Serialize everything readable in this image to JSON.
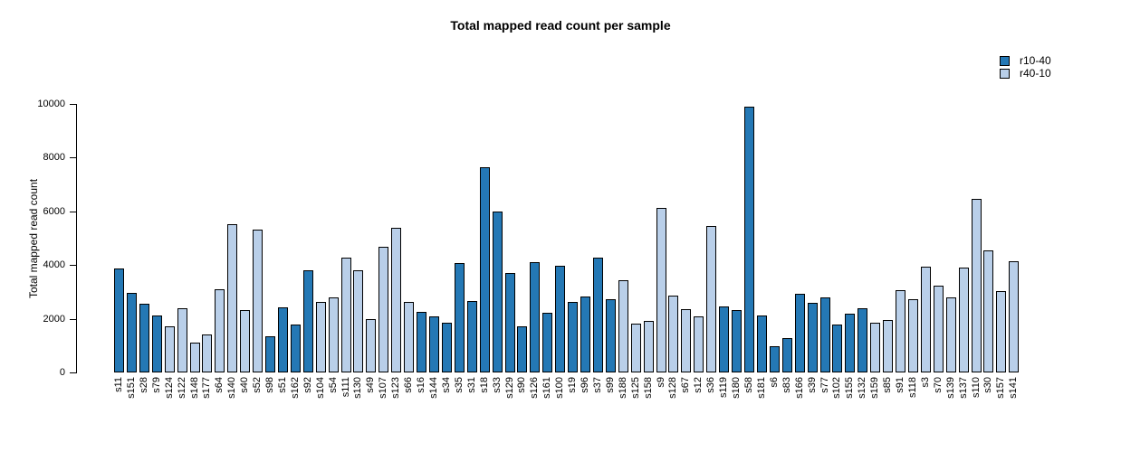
{
  "chart_data": {
    "type": "bar",
    "title": "Total mapped read count per sample",
    "xlabel": "",
    "ylabel": "Total mapped read count",
    "ylim": [
      0,
      10000
    ],
    "yticks": [
      0,
      2000,
      4000,
      6000,
      8000,
      10000
    ],
    "grid": false,
    "legend_position": "top-right",
    "bar_border_color": "#000000",
    "series": [
      {
        "name": "r10-40",
        "color": "#2478b5"
      },
      {
        "name": "r40-10",
        "color": "#b9cfe9"
      }
    ],
    "categories": [
      "s11",
      "s151",
      "s28",
      "s79",
      "s124",
      "s122",
      "s148",
      "s177",
      "s64",
      "s140",
      "s40",
      "s52",
      "s98",
      "s51",
      "s162",
      "s92",
      "s104",
      "s54",
      "s111",
      "s130",
      "s49",
      "s107",
      "s123",
      "s66",
      "s16",
      "s144",
      "s34",
      "s35",
      "s31",
      "s18",
      "s33",
      "s129",
      "s90",
      "s126",
      "s161",
      "s100",
      "s19",
      "s96",
      "s37",
      "s99",
      "s188",
      "s125",
      "s158",
      "s9",
      "s128",
      "s67",
      "s12",
      "s36",
      "s119",
      "s180",
      "s58",
      "s181",
      "s6",
      "s83",
      "s166",
      "s39",
      "s77",
      "s102",
      "s155",
      "s132",
      "s159",
      "s85",
      "s91",
      "s118",
      "s3",
      "s70",
      "s139",
      "s137",
      "s110",
      "s30",
      "s157",
      "s141"
    ],
    "values": [
      3860,
      2970,
      2550,
      2110,
      1720,
      2390,
      1100,
      1430,
      3110,
      5530,
      2330,
      5320,
      1350,
      2440,
      1770,
      3810,
      2630,
      2810,
      4280,
      3810,
      2000,
      4670,
      5400,
      2630,
      2250,
      2100,
      1850,
      4080,
      2660,
      7650,
      6010,
      3700,
      1720,
      4110,
      2220,
      3970,
      2630,
      2830,
      4260,
      2720,
      3440,
      1830,
      1910,
      6140,
      2850,
      2360,
      2080,
      5470,
      2470,
      2330,
      9910,
      2130,
      990,
      1270,
      2940,
      2580,
      2780,
      1770,
      2200,
      2400,
      1850,
      1940,
      3050,
      2720,
      3950,
      3240,
      2800,
      3910,
      6460,
      4560,
      3020,
      4140
    ],
    "bar_series": [
      "r10-40",
      "r10-40",
      "r10-40",
      "r10-40",
      "r40-10",
      "r40-10",
      "r40-10",
      "r40-10",
      "r40-10",
      "r40-10",
      "r40-10",
      "r40-10",
      "r10-40",
      "r10-40",
      "r10-40",
      "r10-40",
      "r40-10",
      "r40-10",
      "r40-10",
      "r40-10",
      "r40-10",
      "r40-10",
      "r40-10",
      "r40-10",
      "r10-40",
      "r10-40",
      "r10-40",
      "r10-40",
      "r10-40",
      "r10-40",
      "r10-40",
      "r10-40",
      "r10-40",
      "r10-40",
      "r10-40",
      "r10-40",
      "r10-40",
      "r10-40",
      "r10-40",
      "r10-40",
      "r40-10",
      "r40-10",
      "r40-10",
      "r40-10",
      "r40-10",
      "r40-10",
      "r40-10",
      "r40-10",
      "r10-40",
      "r10-40",
      "r10-40",
      "r10-40",
      "r10-40",
      "r10-40",
      "r10-40",
      "r10-40",
      "r10-40",
      "r10-40",
      "r10-40",
      "r10-40",
      "r40-10",
      "r40-10",
      "r40-10",
      "r40-10",
      "r40-10",
      "r40-10",
      "r40-10",
      "r40-10",
      "r40-10",
      "r40-10",
      "r40-10",
      "r40-10"
    ]
  }
}
